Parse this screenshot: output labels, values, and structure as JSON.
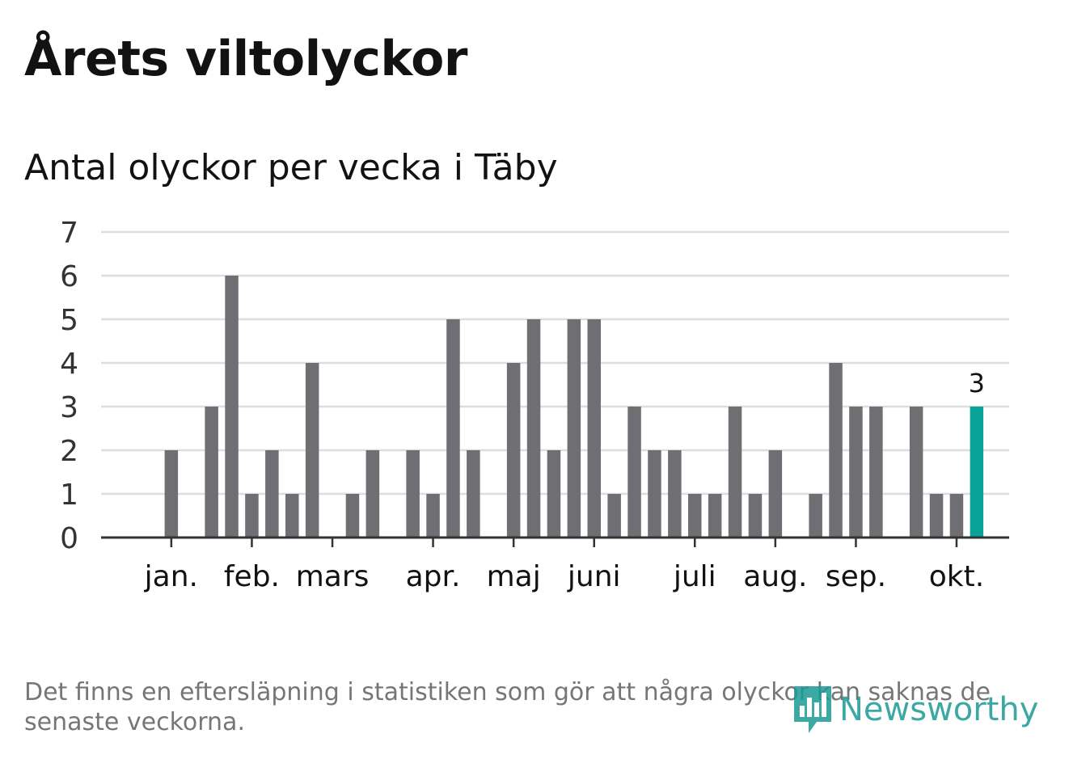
{
  "title": "Årets viltolyckor",
  "subtitle": "Antal olyckor per vecka i Täby",
  "footnote": "Det finns en eftersläpning i statistiken som gör att några olyckor kan saknas de senaste veckorna.",
  "logo": {
    "text": "Newsworthy",
    "icon": "bar-chart-bubble-icon"
  },
  "colors": {
    "bar": "#6f6e73",
    "highlight": "#0aa39a",
    "grid": "#dddddd",
    "axis": "#333333",
    "text": "#121212"
  },
  "chart_data": {
    "type": "bar",
    "title": "Antal olyckor per vecka i Täby",
    "ylim": [
      0,
      7
    ],
    "y_ticks": [
      0,
      1,
      2,
      3,
      4,
      5,
      6,
      7
    ],
    "grid": true,
    "x_unit": "week",
    "x_start_week": 1,
    "values": [
      0,
      2,
      0,
      3,
      6,
      1,
      2,
      1,
      4,
      0,
      1,
      2,
      0,
      2,
      1,
      5,
      2,
      0,
      4,
      5,
      2,
      5,
      5,
      1,
      3,
      2,
      2,
      1,
      1,
      3,
      1,
      2,
      0,
      1,
      4,
      3,
      3,
      0,
      3,
      1,
      1,
      3
    ],
    "month_ticks": [
      {
        "label": "jan.",
        "week": 2
      },
      {
        "label": "feb.",
        "week": 6
      },
      {
        "label": "mars",
        "week": 10
      },
      {
        "label": "apr.",
        "week": 15
      },
      {
        "label": "maj",
        "week": 19
      },
      {
        "label": "juni",
        "week": 23
      },
      {
        "label": "juli",
        "week": 28
      },
      {
        "label": "aug.",
        "week": 32
      },
      {
        "label": "sep.",
        "week": 36
      },
      {
        "label": "okt.",
        "week": 41
      }
    ],
    "highlight": {
      "week": 42,
      "value": 3,
      "label": "3"
    }
  }
}
